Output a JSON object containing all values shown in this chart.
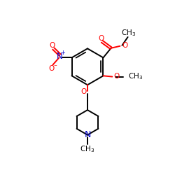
{
  "bg_color": "#ffffff",
  "bond_color": "#000000",
  "bond_width": 1.4,
  "atom_colors": {
    "O": "#ff0000",
    "N": "#0000cd",
    "C": "#000000"
  },
  "figsize": [
    2.5,
    2.5
  ],
  "dpi": 100,
  "xlim": [
    0,
    10
  ],
  "ylim": [
    0,
    10
  ]
}
